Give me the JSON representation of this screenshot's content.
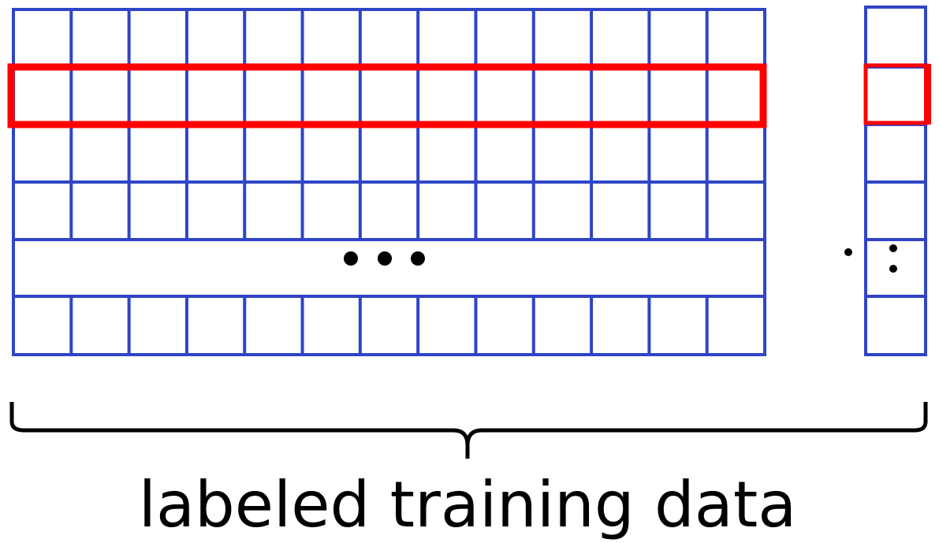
{
  "caption": "labeled training data"
}
